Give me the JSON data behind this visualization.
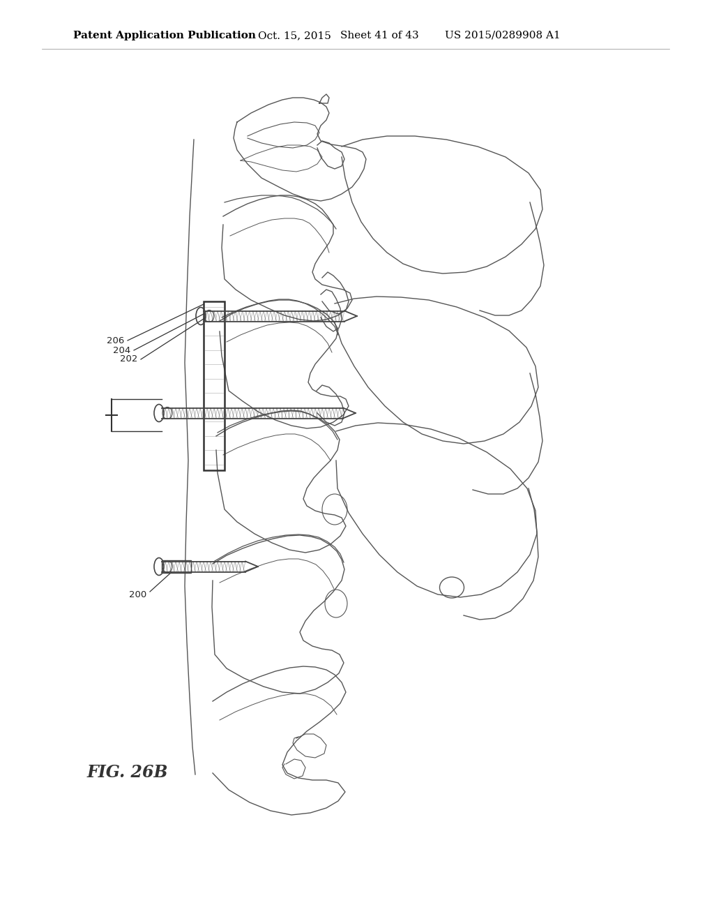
{
  "title": "Patent Application Publication",
  "date": "Oct. 15, 2015",
  "sheet": "Sheet 41 of 43",
  "patent_num": "US 2015/0289908 A1",
  "fig_label": "FIG. 26B",
  "ref_labels": [
    "200",
    "202",
    "204",
    "206"
  ],
  "background_color": "#ffffff",
  "line_color": "#555555",
  "header_font_size": 11,
  "label_font_size": 9.5
}
